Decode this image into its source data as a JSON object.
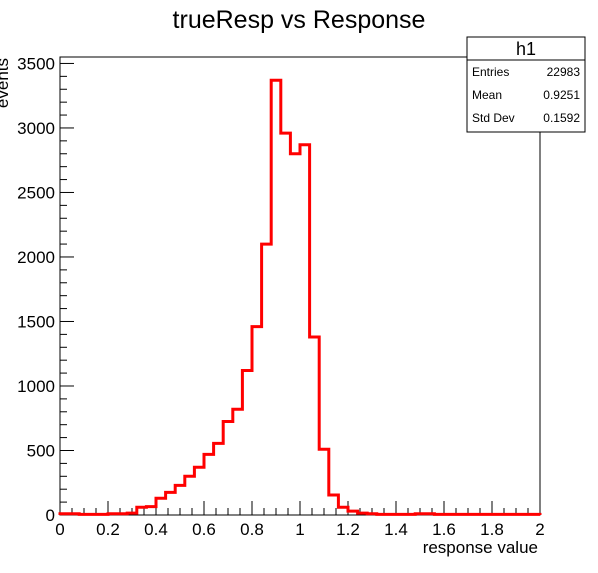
{
  "chart_data": {
    "type": "bar",
    "title": "trueResp vs Response",
    "xlabel": "response value",
    "ylabel": "events",
    "xlim": [
      0,
      2
    ],
    "ylim": [
      0,
      3550
    ],
    "x_ticks": [
      "0",
      "0.2",
      "0.4",
      "0.6",
      "0.8",
      "1",
      "1.2",
      "1.4",
      "1.6",
      "1.8",
      "2"
    ],
    "y_ticks": [
      "0",
      "500",
      "1000",
      "1500",
      "2000",
      "2500",
      "3000",
      "3500"
    ],
    "bin_width": 0.04,
    "bin_edges_start": 0,
    "values": [
      10,
      10,
      5,
      5,
      5,
      10,
      10,
      15,
      60,
      65,
      130,
      175,
      230,
      300,
      370,
      470,
      555,
      725,
      820,
      1120,
      1460,
      2100,
      3370,
      2960,
      2800,
      2870,
      1380,
      510,
      155,
      60,
      30,
      15,
      10,
      5,
      5,
      5,
      5,
      10,
      10,
      5,
      5,
      5,
      5,
      5,
      5,
      5,
      5,
      5,
      5,
      5
    ],
    "line_color": "#ff0000",
    "grid": false,
    "legend": "none"
  },
  "stats_box": {
    "title": "h1",
    "rows": [
      {
        "label": "Entries",
        "value": "22983"
      },
      {
        "label": "Mean",
        "value": "0.9251"
      },
      {
        "label": "Std Dev",
        "value": "0.1592"
      }
    ]
  }
}
